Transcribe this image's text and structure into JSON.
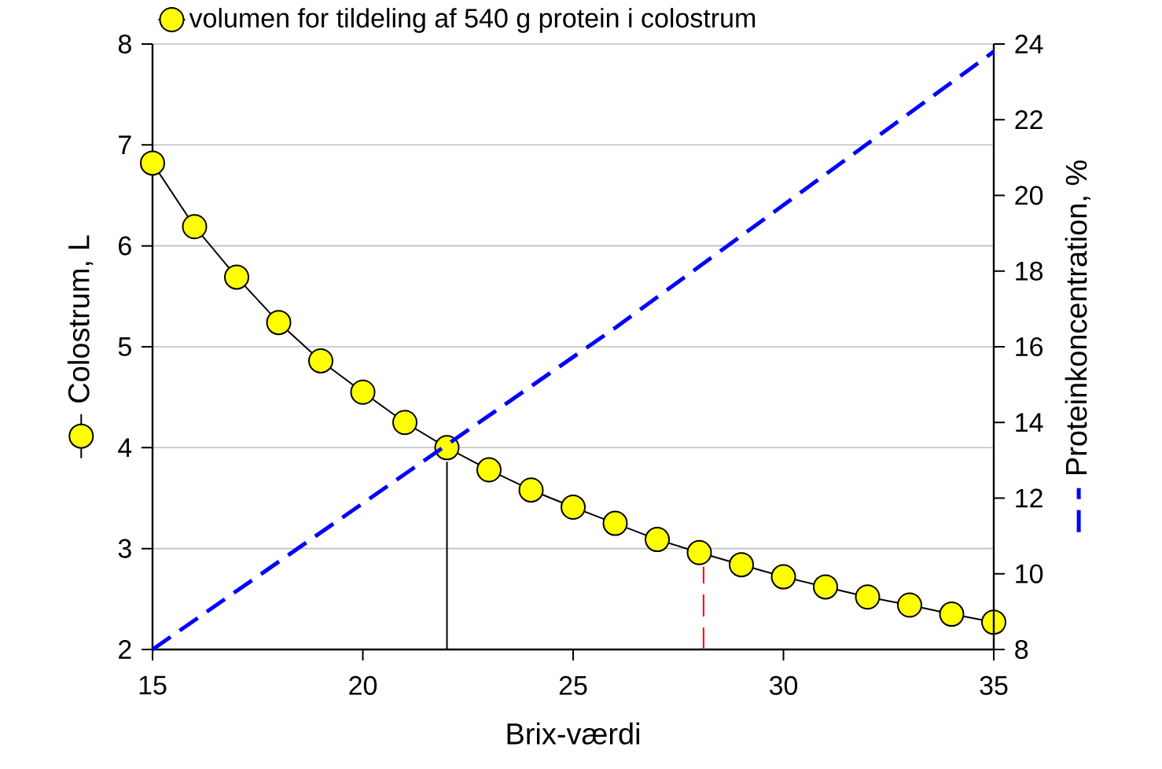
{
  "chart_data": {
    "type": "line",
    "xlabel": "Brix-værdi",
    "ylabel": "Colostrum, L",
    "y2label": "Proteinkoncentration, %",
    "xlim": [
      15,
      35
    ],
    "xticks": [
      15,
      20,
      25,
      30,
      35
    ],
    "ylim": [
      2,
      8
    ],
    "yticks": [
      2,
      3,
      4,
      5,
      6,
      7,
      8
    ],
    "y2lim": [
      8,
      24
    ],
    "y2ticks": [
      8,
      10,
      12,
      14,
      16,
      18,
      20,
      22,
      24
    ],
    "grid": "y",
    "legend": "top",
    "series": [
      {
        "name": "volumen for tildeling af 540 g protein i colostrum",
        "color": "#ffff00",
        "marker": "circle",
        "line_style": "solid",
        "x": [
          15,
          16,
          17,
          18,
          19,
          20,
          21,
          22,
          23,
          24,
          25,
          26,
          27,
          28,
          29,
          30,
          31,
          32,
          33,
          34,
          35
        ],
        "values": [
          6.82,
          6.19,
          5.69,
          5.24,
          4.86,
          4.55,
          4.25,
          4.0,
          3.78,
          3.58,
          3.41,
          3.25,
          3.09,
          2.96,
          2.84,
          2.72,
          2.62,
          2.52,
          2.44,
          2.35,
          2.27
        ]
      },
      {
        "color": "#0000ff",
        "marker": "none",
        "line_style": "dashed",
        "axis": "y2",
        "x": [
          15,
          26,
          35
        ],
        "values": [
          8,
          16.5,
          23.8
        ]
      },
      {
        "color": "#000000",
        "marker": "none",
        "line_style": "solid",
        "x": [
          22,
          22
        ],
        "values": [
          2,
          3.86
        ]
      },
      {
        "color": "#ff0000",
        "marker": "none",
        "line_style": "dashed",
        "x": [
          28.1,
          28.1
        ],
        "values": [
          2,
          2.82
        ]
      }
    ]
  }
}
